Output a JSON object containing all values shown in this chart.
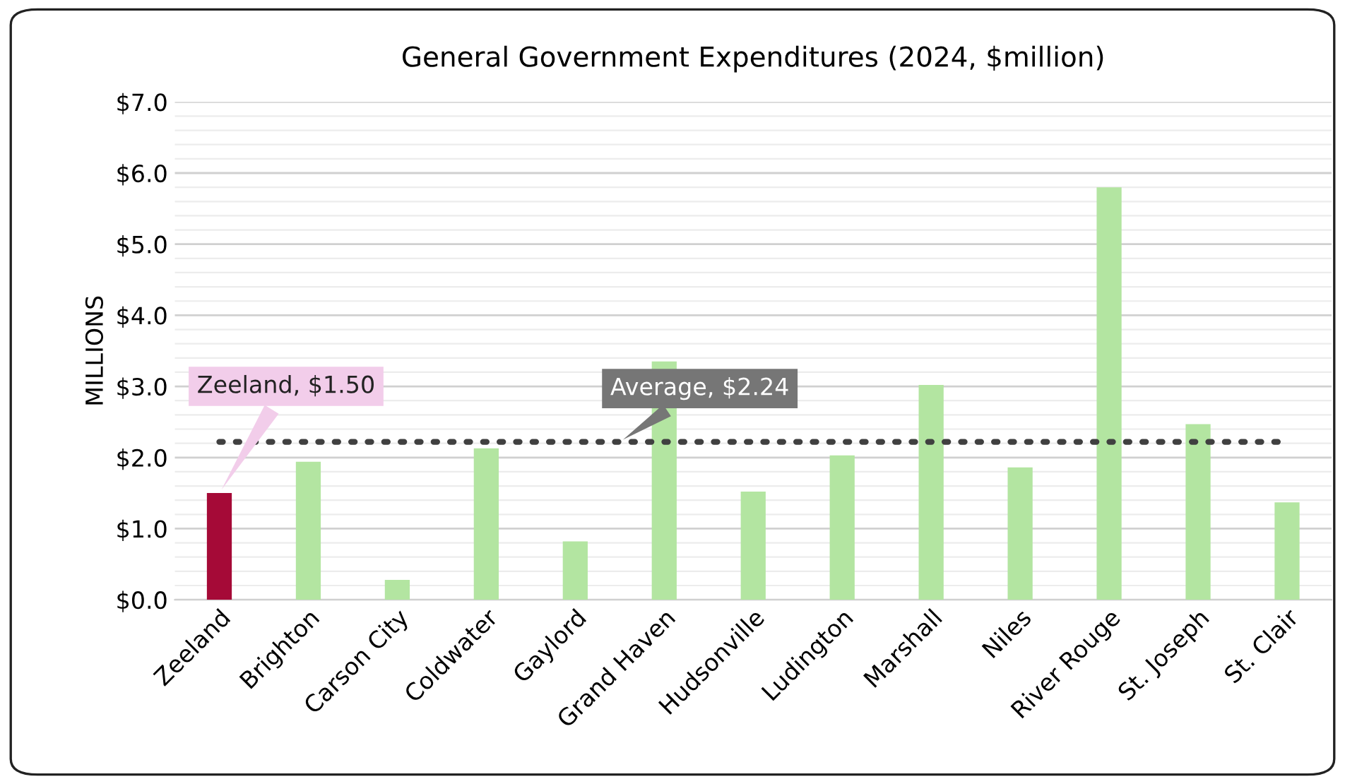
{
  "chart_data": {
    "type": "bar",
    "title": "General Government Expenditures (2024, $million)",
    "ylabel": "MILLIONS",
    "categories": [
      "Zeeland",
      "Brighton",
      "Carson City",
      "Coldwater",
      "Gaylord",
      "Grand Haven",
      "Hudsonville",
      "Ludington",
      "Marshall",
      "Niles",
      "River Rouge",
      "St. Joseph",
      "St. Clair"
    ],
    "values": [
      1.5,
      1.94,
      0.28,
      2.13,
      0.82,
      3.35,
      1.52,
      2.03,
      3.02,
      1.86,
      5.8,
      2.47,
      1.37
    ],
    "colors": [
      "#a50a37",
      "#b3e5a1",
      "#b3e5a1",
      "#b3e5a1",
      "#b3e5a1",
      "#b3e5a1",
      "#b3e5a1",
      "#b3e5a1",
      "#b3e5a1",
      "#b3e5a1",
      "#b3e5a1",
      "#b3e5a1",
      "#b3e5a1"
    ],
    "ylim": [
      0,
      7
    ],
    "yticks": [
      {
        "value": 0,
        "label": "$0.0"
      },
      {
        "value": 0.2,
        "label": null
      },
      {
        "value": 0.4,
        "label": null
      },
      {
        "value": 0.6,
        "label": null
      },
      {
        "value": 0.8,
        "label": null
      },
      {
        "value": 1,
        "label": "$1.0"
      },
      {
        "value": 1.2,
        "label": null
      },
      {
        "value": 1.4,
        "label": null
      },
      {
        "value": 1.6,
        "label": null
      },
      {
        "value": 1.8,
        "label": null
      },
      {
        "value": 2,
        "label": "$2.0"
      },
      {
        "value": 2.2,
        "label": null
      },
      {
        "value": 2.4,
        "label": null
      },
      {
        "value": 2.6,
        "label": null
      },
      {
        "value": 2.8,
        "label": null
      },
      {
        "value": 3,
        "label": "$3.0"
      },
      {
        "value": 3.2,
        "label": null
      },
      {
        "value": 3.4,
        "label": null
      },
      {
        "value": 3.6,
        "label": null
      },
      {
        "value": 3.8,
        "label": null
      },
      {
        "value": 4,
        "label": "$4.0"
      },
      {
        "value": 4.2,
        "label": null
      },
      {
        "value": 4.4,
        "label": null
      },
      {
        "value": 4.6,
        "label": null
      },
      {
        "value": 4.8,
        "label": null
      },
      {
        "value": 5,
        "label": "$5.0"
      },
      {
        "value": 5.2,
        "label": null
      },
      {
        "value": 5.4,
        "label": null
      },
      {
        "value": 5.6,
        "label": null
      },
      {
        "value": 5.8,
        "label": null
      },
      {
        "value": 6,
        "label": "$6.0"
      },
      {
        "value": 6.2,
        "label": null
      },
      {
        "value": 6.4,
        "label": null
      },
      {
        "value": 6.6,
        "label": null
      },
      {
        "value": 6.8,
        "label": null
      },
      {
        "value": 7,
        "label": "$7.0"
      }
    ],
    "grid": "y",
    "ref_lines": [
      {
        "axis": "y",
        "value": 2.22,
        "label": "Average, $2.24",
        "color": "#404040",
        "line_style": "dotted"
      }
    ],
    "annotations": [
      "Zeeland, $1.50"
    ]
  }
}
